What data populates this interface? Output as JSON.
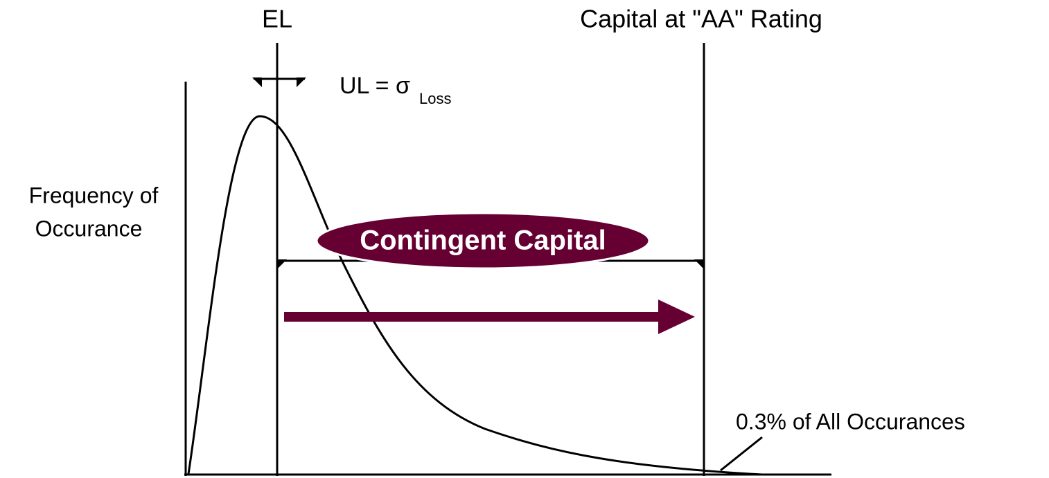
{
  "labels": {
    "el": "EL",
    "capital": "Capital at \"AA\" Rating",
    "ul": "UL = σ",
    "ul_subscript": "Loss",
    "y_axis": [
      "Frequency of",
      "Occurance"
    ],
    "contingent": "Contingent Capital",
    "tail": "0.3% of All Occurances"
  }
}
